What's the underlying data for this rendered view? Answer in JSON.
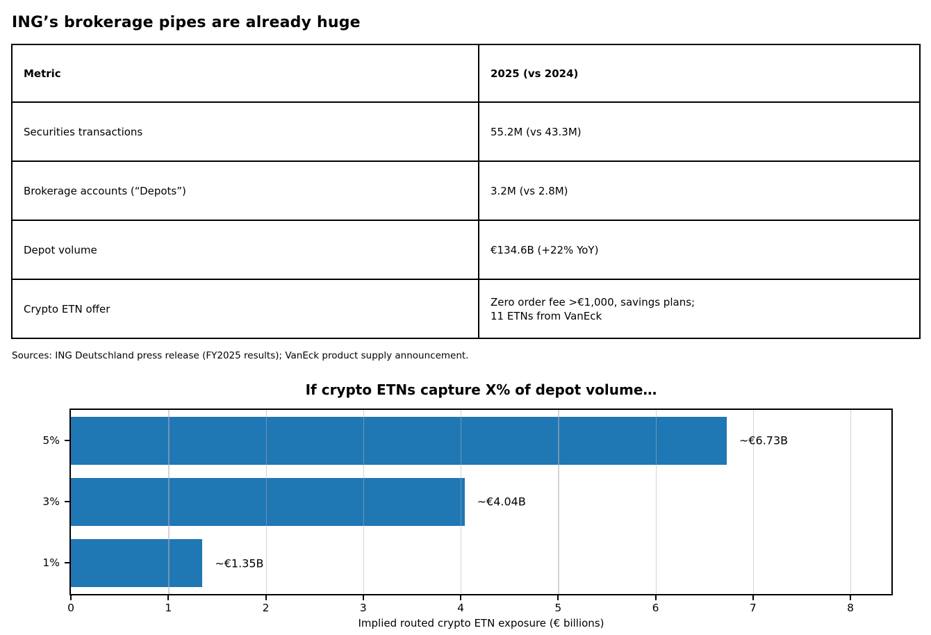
{
  "page": {
    "title": "ING’s brokerage pipes are already huge",
    "sources": "Sources: ING Deutschland press release (FY2025 results); VanEck product supply announcement."
  },
  "table": {
    "columns": [
      "Metric",
      "2025 (vs 2024)"
    ],
    "rows": [
      [
        "Securities transactions",
        "55.2M (vs 43.3M)"
      ],
      [
        "Brokerage accounts (“Depots”)",
        "3.2M (vs 2.8M)"
      ],
      [
        "Depot volume",
        "€134.6B (+22% YoY)"
      ],
      [
        "Crypto ETN offer",
        "Zero order fee >€1,000, savings plans;\n11 ETNs from VanEck"
      ]
    ]
  },
  "chart_data": {
    "type": "bar",
    "orientation": "horizontal",
    "title": "If crypto ETNs capture X% of depot volume…",
    "categories": [
      "5%",
      "3%",
      "1%"
    ],
    "values": [
      6.73,
      4.04,
      1.35
    ],
    "bar_labels": [
      "~€6.73B",
      "~€4.04B",
      "~€1.35B"
    ],
    "xlabel": "Implied routed crypto ETN exposure (€ billions)",
    "ylabel": "",
    "xlim": [
      0,
      8.42
    ],
    "xticks": [
      0,
      1,
      2,
      3,
      4,
      5,
      6,
      7,
      8
    ],
    "grid": true,
    "legend": "none",
    "bar_color": "#1f77b4"
  }
}
